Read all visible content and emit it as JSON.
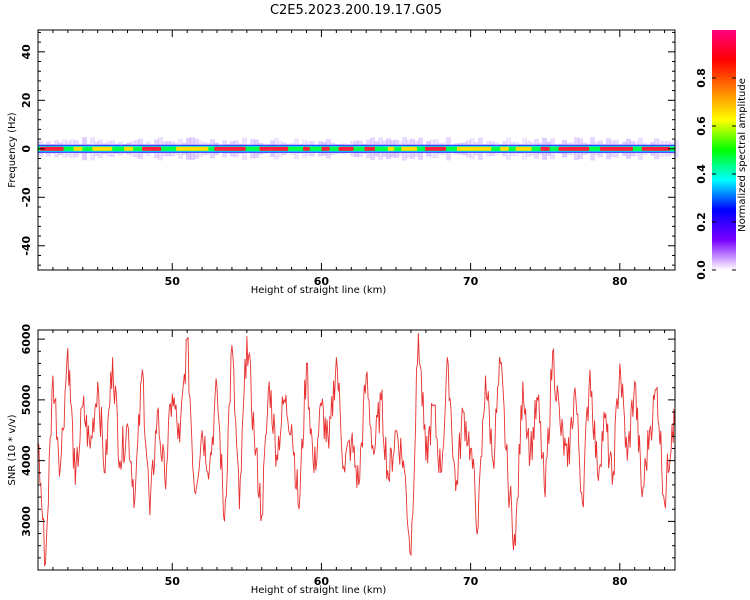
{
  "title": "C2E5.2023.200.19.17.G05",
  "chart_data": [
    {
      "type": "heatmap",
      "xlabel": "Height of straight line (km)",
      "ylabel": "Frequency (Hz)",
      "xlim": [
        41,
        83.7
      ],
      "ylim": [
        -50,
        49
      ],
      "xticks": [
        50,
        60,
        70,
        80
      ],
      "yticks": [
        -40,
        -20,
        0,
        20,
        40
      ],
      "xtick_labels": [
        "50",
        "60",
        "70",
        "80"
      ],
      "ytick_labels": [
        "-40",
        "-20",
        "0",
        "20",
        "40"
      ],
      "peak_frequency_hz": 0,
      "colorbar": {
        "label": "Normalized spectral amplitude",
        "range": [
          0,
          1
        ],
        "ticks": [
          0.0,
          0.2,
          0.4,
          0.6,
          0.8
        ],
        "tick_labels": [
          "0.0",
          "0.2",
          "0.4",
          "0.6",
          "0.8"
        ],
        "colormap": [
          "#ffffff",
          "#7a00ff",
          "#0000ff",
          "#00ffff",
          "#00ff00",
          "#ffff00",
          "#ff8000",
          "#ff0000",
          "#ff0080"
        ]
      }
    },
    {
      "type": "line",
      "xlabel": "Height of straight line (km)",
      "ylabel": "SNR (10 * v/v)",
      "xlim": [
        41,
        83.7
      ],
      "ylim": [
        2200,
        6150
      ],
      "xticks": [
        50,
        60,
        70,
        80
      ],
      "yticks": [
        3000,
        4000,
        5000,
        6000
      ],
      "xtick_labels": [
        "50",
        "60",
        "70",
        "80"
      ],
      "ytick_labels": [
        "3000",
        "4000",
        "5000",
        "6000"
      ],
      "color": "#e83030",
      "x": [
        41.0,
        41.5,
        42.0,
        42.5,
        43.0,
        43.5,
        44.0,
        44.5,
        45.0,
        45.5,
        46.0,
        46.5,
        47.0,
        47.5,
        48.0,
        48.5,
        49.0,
        49.5,
        50.0,
        50.5,
        51.0,
        51.5,
        52.0,
        52.5,
        53.0,
        53.5,
        54.0,
        54.5,
        55.0,
        55.5,
        56.0,
        56.5,
        57.0,
        57.5,
        58.0,
        58.5,
        59.0,
        59.5,
        60.0,
        60.5,
        61.0,
        61.5,
        62.0,
        62.5,
        63.0,
        63.5,
        64.0,
        64.5,
        65.0,
        65.5,
        66.0,
        66.5,
        67.0,
        67.5,
        68.0,
        68.5,
        69.0,
        69.5,
        70.0,
        70.5,
        71.0,
        71.5,
        72.0,
        72.5,
        73.0,
        73.5,
        74.0,
        74.5,
        75.0,
        75.5,
        76.0,
        76.5,
        77.0,
        77.5,
        78.0,
        78.5,
        79.0,
        79.5,
        80.0,
        80.5,
        81.0,
        81.5,
        82.0,
        82.5,
        83.0,
        83.5
      ],
      "y": [
        4300,
        2300,
        5400,
        3900,
        5850,
        3600,
        4900,
        4200,
        5300,
        3800,
        5700,
        4000,
        4600,
        3400,
        5500,
        3100,
        4800,
        3700,
        5100,
        4300,
        6000,
        3500,
        4500,
        3900,
        5200,
        3000,
        5900,
        3200,
        6050,
        4400,
        3100,
        5300,
        4100,
        5000,
        4600,
        3200,
        5600,
        3800,
        4900,
        4200,
        5700,
        3900,
        4300,
        3600,
        5400,
        4100,
        5000,
        3700,
        4500,
        4000,
        2450,
        6100,
        4000,
        4900,
        3800,
        5600,
        3500,
        4800,
        4200,
        2900,
        5400,
        4000,
        5600,
        3700,
        2600,
        5300,
        4100,
        5000,
        3400,
        5800,
        4600,
        3900,
        5200,
        3300,
        5500,
        3800,
        4700,
        3600,
        5600,
        4000,
        5300,
        3400,
        4500,
        5200,
        3300,
        4600
      ]
    }
  ]
}
